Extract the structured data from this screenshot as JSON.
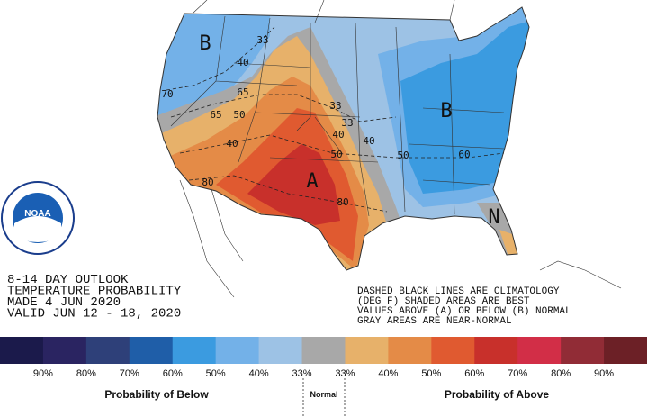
{
  "map": {
    "labels": [
      {
        "text": "B"
      },
      {
        "text": "B"
      },
      {
        "text": "A"
      },
      {
        "text": "N"
      },
      {
        "text": "33"
      },
      {
        "text": "40"
      },
      {
        "text": "70"
      },
      {
        "text": "65"
      },
      {
        "text": "65"
      },
      {
        "text": "50"
      },
      {
        "text": "40"
      },
      {
        "text": "80"
      },
      {
        "text": "33"
      },
      {
        "text": "33"
      },
      {
        "text": "40"
      },
      {
        "text": "40"
      },
      {
        "text": "50"
      },
      {
        "text": "50"
      },
      {
        "text": "60"
      },
      {
        "text": "80"
      }
    ]
  },
  "logo": {
    "text": "NOAA"
  },
  "info": {
    "lines": [
      "8-14 DAY OUTLOOK",
      "TEMPERATURE PROBABILITY",
      "MADE  4 JUN 2020",
      "VALID  JUN 12 - 18, 2020"
    ]
  },
  "note": {
    "lines": [
      "DASHED BLACK LINES ARE CLIMATOLOGY",
      "(DEG F) SHADED AREAS ARE BEST",
      "VALUES ABOVE (A) OR BELOW (B) NORMAL",
      "GRAY AREAS ARE NEAR-NORMAL"
    ]
  },
  "legend": {
    "colors": [
      "#1b1a4b",
      "#2a2461",
      "#2e4079",
      "#1f5ea8",
      "#3b9be0",
      "#73b1e8",
      "#9dc2e5",
      "#a8a8a8",
      "#e7b16a",
      "#e48b47",
      "#e05a30",
      "#c8302b",
      "#d22e47",
      "#912c36",
      "#6c2026"
    ],
    "labels": [
      "90%",
      "80%",
      "70%",
      "60%",
      "50%",
      "40%",
      "33%",
      "33%",
      "40%",
      "50%",
      "60%",
      "70%",
      "80%",
      "90%"
    ],
    "below": "Probability of Below",
    "normal": "Normal",
    "above": "Probability of Above"
  }
}
